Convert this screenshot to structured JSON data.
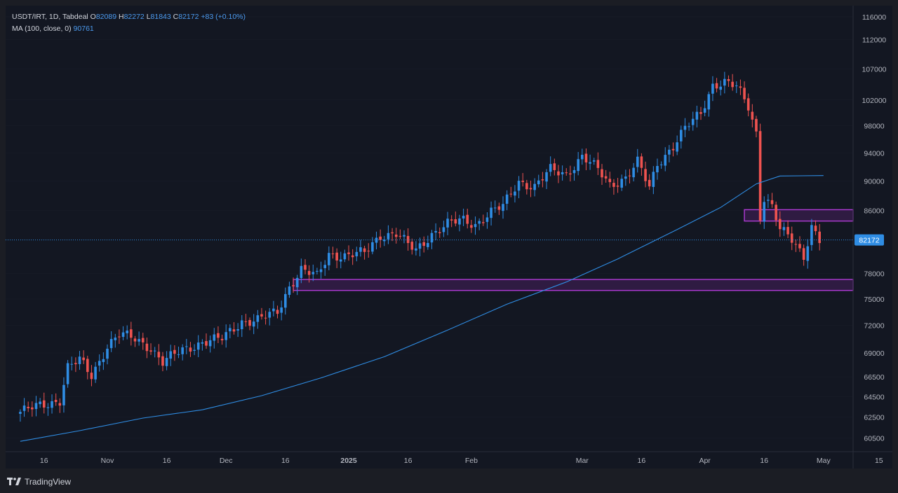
{
  "legend": {
    "symbol": "USDT/IRT, 1D, Tabdeal",
    "o_label": "O",
    "o_value": "82089",
    "h_label": "H",
    "h_value": "82272",
    "l_label": "L",
    "l_value": "81843",
    "c_label": "C",
    "c_value": "82172",
    "change": "+83 (+0.10%)",
    "ma_label": "MA (100, close, 0)",
    "ma_value": "90761"
  },
  "footer": {
    "brand": "TradingView"
  },
  "colors": {
    "up": "#2f8de4",
    "down": "#ef5350",
    "ma": "#2f8de4",
    "zone_stroke": "#b03bd6",
    "zone_fill": "#3a1d4e",
    "price_tag": "#2f8de4",
    "background": "#131722",
    "grid": "#2a2e39"
  },
  "chart_data": {
    "type": "candlestick",
    "x_ticks": [
      "16",
      "Nov",
      "16",
      "Dec",
      "16",
      "2025",
      "16",
      "Feb",
      "Mar",
      "16",
      "Apr",
      "16",
      "May",
      "15"
    ],
    "y_ticks": [
      116000,
      112000,
      107000,
      102000,
      98000,
      94000,
      90000,
      86000,
      78000,
      75000,
      72000,
      69000,
      66500,
      64500,
      62500,
      60500
    ],
    "y_scale": "log",
    "ylim": [
      59500,
      117500
    ],
    "last_price": 82172,
    "zones": [
      {
        "start": "2024-12-18",
        "end": "2025-05-19",
        "low": 76000,
        "high": 77300
      },
      {
        "start": "2025-04-11",
        "end": "2025-05-25",
        "low": 84600,
        "high": 86100
      }
    ],
    "anchors": [
      [
        "2024-10-10",
        63000
      ],
      [
        "2024-10-16",
        63700
      ],
      [
        "2024-10-20",
        64200
      ],
      [
        "2024-10-22",
        67500
      ],
      [
        "2024-10-25",
        68200
      ],
      [
        "2024-10-28",
        66600
      ],
      [
        "2024-11-01",
        69800
      ],
      [
        "2024-11-04",
        71000
      ],
      [
        "2024-11-08",
        70500
      ],
      [
        "2024-11-12",
        69600
      ],
      [
        "2024-11-15",
        68000
      ],
      [
        "2024-11-20",
        69300
      ],
      [
        "2024-11-25",
        70200
      ],
      [
        "2024-11-30",
        70500
      ],
      [
        "2024-12-05",
        72500
      ],
      [
        "2024-12-09",
        72600
      ],
      [
        "2024-12-14",
        73500
      ],
      [
        "2024-12-17",
        76500
      ],
      [
        "2024-12-20",
        78500
      ],
      [
        "2024-12-24",
        77600
      ],
      [
        "2024-12-27",
        80400
      ],
      [
        "2024-12-31",
        80200
      ],
      [
        "2025-01-05",
        80500
      ],
      [
        "2025-01-09",
        82800
      ],
      [
        "2025-01-13",
        83000
      ],
      [
        "2025-01-16",
        81500
      ],
      [
        "2025-01-18",
        80800
      ],
      [
        "2025-01-22",
        83000
      ],
      [
        "2025-01-26",
        84200
      ],
      [
        "2025-01-30",
        84700
      ],
      [
        "2025-02-02",
        84200
      ],
      [
        "2025-02-06",
        85800
      ],
      [
        "2025-02-09",
        86500
      ],
      [
        "2025-02-13",
        90000
      ],
      [
        "2025-02-17",
        89200
      ],
      [
        "2025-02-21",
        91500
      ],
      [
        "2025-02-25",
        91000
      ],
      [
        "2025-03-01",
        93500
      ],
      [
        "2025-03-05",
        91500
      ],
      [
        "2025-03-08",
        89500
      ],
      [
        "2025-03-12",
        90500
      ],
      [
        "2025-03-15",
        92600
      ],
      [
        "2025-03-18",
        89000
      ],
      [
        "2025-03-20",
        92500
      ],
      [
        "2025-03-24",
        95000
      ],
      [
        "2025-03-27",
        97500
      ],
      [
        "2025-03-31",
        100000
      ],
      [
        "2025-04-03",
        104500
      ],
      [
        "2025-04-06",
        104800
      ],
      [
        "2025-04-09",
        104000
      ],
      [
        "2025-04-12",
        101000
      ],
      [
        "2025-04-14",
        97000
      ],
      [
        "2025-04-15",
        85300
      ],
      [
        "2025-04-16",
        87800
      ],
      [
        "2025-04-18",
        86500
      ],
      [
        "2025-04-20",
        83400
      ],
      [
        "2025-04-23",
        82200
      ],
      [
        "2025-04-26",
        80200
      ],
      [
        "2025-04-28",
        84000
      ],
      [
        "2025-04-30",
        82100
      ]
    ],
    "ma_points": [
      [
        "2024-10-10",
        60200
      ],
      [
        "2024-10-25",
        61200
      ],
      [
        "2024-11-10",
        62400
      ],
      [
        "2024-11-25",
        63200
      ],
      [
        "2024-12-10",
        64600
      ],
      [
        "2024-12-25",
        66400
      ],
      [
        "2025-01-10",
        68600
      ],
      [
        "2025-01-25",
        71300
      ],
      [
        "2025-02-10",
        74400
      ],
      [
        "2025-02-25",
        77000
      ],
      [
        "2025-03-10",
        79800
      ],
      [
        "2025-03-25",
        83500
      ],
      [
        "2025-04-05",
        86400
      ],
      [
        "2025-04-14",
        89600
      ],
      [
        "2025-04-20",
        90700
      ],
      [
        "2025-05-01",
        90761
      ]
    ]
  }
}
